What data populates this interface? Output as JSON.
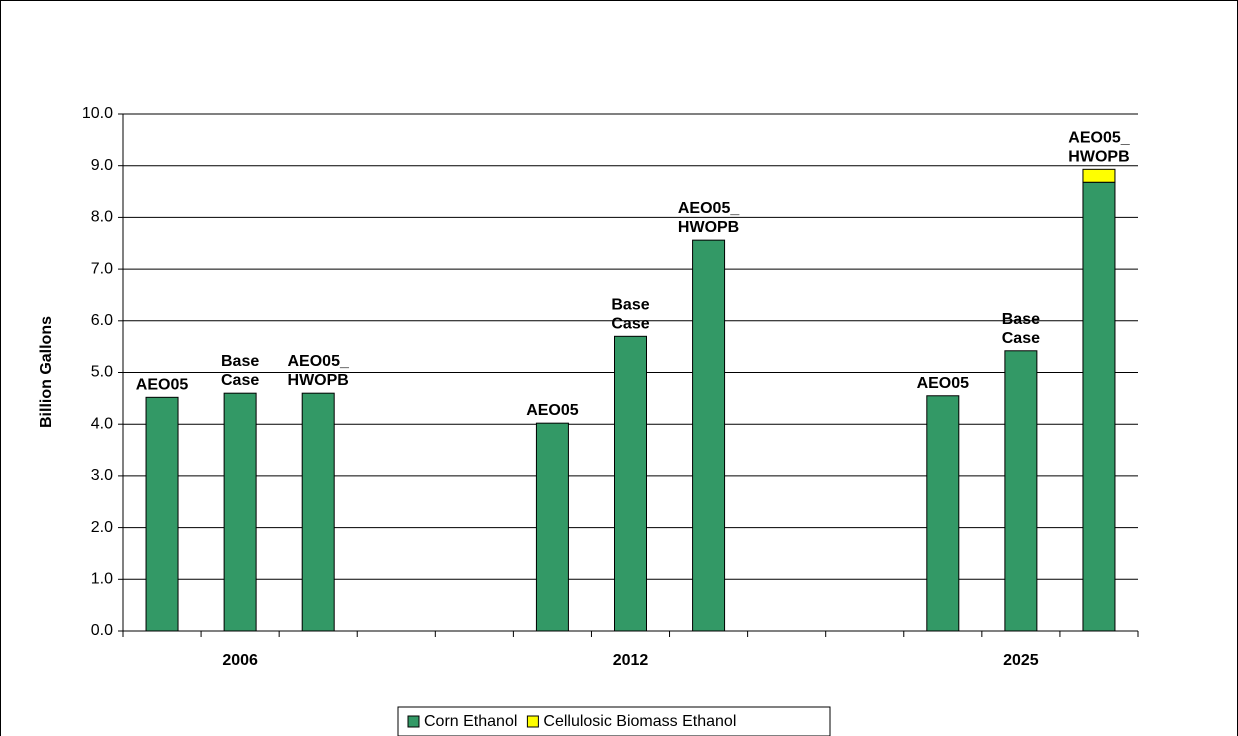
{
  "chart_data": {
    "type": "stacked_bar",
    "y_label": "Billion Gallons",
    "categories": [
      "AEO05",
      "Base Case",
      "AEO05_ HWOPB",
      null,
      null,
      "AEO05",
      "Base Case",
      "AEO05_ HWOPB",
      null,
      null,
      "AEO05",
      "Base Case",
      "AEO05_ HWOPB"
    ],
    "groups": [
      "2006",
      "2012",
      "2025"
    ],
    "series": [
      {
        "name": "Corn Ethanol",
        "color": "#339966",
        "values": [
          4.52,
          4.6,
          4.6,
          null,
          null,
          4.02,
          5.7,
          7.56,
          null,
          null,
          4.55,
          5.42,
          8.68
        ]
      },
      {
        "name": "Cellulosic Biomass Ethanol",
        "color": "#ffff00",
        "values": [
          null,
          null,
          null,
          null,
          null,
          null,
          null,
          null,
          null,
          null,
          null,
          null,
          0.25
        ]
      }
    ],
    "ylim": [
      0,
      10
    ],
    "yticks": [
      {
        "value": 0,
        "label": "0.0"
      },
      {
        "value": 1,
        "label": "1.0"
      },
      {
        "value": 2,
        "label": "2.0"
      },
      {
        "value": 3,
        "label": "3.0"
      },
      {
        "value": 4,
        "label": "4.0"
      },
      {
        "value": 5,
        "label": "5.0"
      },
      {
        "value": 6,
        "label": "6.0"
      },
      {
        "value": 7,
        "label": "7.0"
      },
      {
        "value": 8,
        "label": "8.0"
      },
      {
        "value": 9,
        "label": "9.0"
      },
      {
        "value": 10,
        "label": "10.0"
      }
    ],
    "grid": true
  }
}
